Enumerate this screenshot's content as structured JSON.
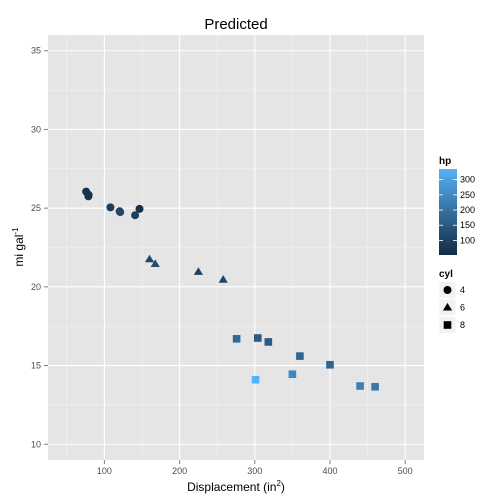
{
  "chart_data": {
    "type": "scatter",
    "title": "Predicted",
    "xlabel": "Displacement (in",
    "xlabel_sup": "2",
    "xlabel_suffix": ")",
    "ylabel": "mi gal",
    "ylabel_sup": "-1",
    "xlim": [
      25,
      525
    ],
    "ylim": [
      9,
      36
    ],
    "xticks": [
      100,
      200,
      300,
      400,
      500
    ],
    "yticks": [
      10,
      15,
      20,
      25,
      30,
      35
    ],
    "grid": true,
    "panel_bg": "#E5E5E5",
    "grid_color": "#FFFFFF",
    "hp_color_low": "#132B43",
    "hp_color_high": "#56B1F7",
    "hp_range": [
      52,
      335
    ],
    "legend_placement": "right",
    "legend_hp": {
      "title": "hp",
      "ticks": [
        100,
        150,
        200,
        250,
        300
      ]
    },
    "legend_cyl": {
      "title": "cyl",
      "items": [
        {
          "label": "4",
          "shape": "circle"
        },
        {
          "label": "6",
          "shape": "triangle"
        },
        {
          "label": "8",
          "shape": "square"
        }
      ]
    },
    "points": [
      {
        "x": 75.7,
        "y": 26.05,
        "hp": 66,
        "cyl": "4"
      },
      {
        "x": 78.7,
        "y": 25.75,
        "hp": 65,
        "cyl": "4"
      },
      {
        "x": 79.0,
        "y": 25.85,
        "hp": 66,
        "cyl": "4"
      },
      {
        "x": 108.0,
        "y": 25.05,
        "hp": 93,
        "cyl": "4"
      },
      {
        "x": 120.3,
        "y": 24.8,
        "hp": 91,
        "cyl": "4"
      },
      {
        "x": 121.0,
        "y": 24.75,
        "hp": 109,
        "cyl": "4"
      },
      {
        "x": 140.8,
        "y": 24.55,
        "hp": 95,
        "cyl": "4"
      },
      {
        "x": 146.7,
        "y": 24.95,
        "hp": 62,
        "cyl": "4"
      },
      {
        "x": 160.0,
        "y": 21.75,
        "hp": 110,
        "cyl": "6"
      },
      {
        "x": 167.6,
        "y": 21.45,
        "hp": 123,
        "cyl": "6"
      },
      {
        "x": 225.0,
        "y": 20.95,
        "hp": 105,
        "cyl": "6"
      },
      {
        "x": 258.0,
        "y": 20.45,
        "hp": 110,
        "cyl": "6"
      },
      {
        "x": 275.8,
        "y": 16.7,
        "hp": 180,
        "cyl": "8"
      },
      {
        "x": 301.0,
        "y": 14.1,
        "hp": 335,
        "cyl": "8"
      },
      {
        "x": 304.0,
        "y": 16.75,
        "hp": 150,
        "cyl": "8"
      },
      {
        "x": 318.0,
        "y": 16.5,
        "hp": 150,
        "cyl": "8"
      },
      {
        "x": 350.0,
        "y": 14.45,
        "hp": 245,
        "cyl": "8"
      },
      {
        "x": 360.0,
        "y": 15.6,
        "hp": 175,
        "cyl": "8"
      },
      {
        "x": 400.0,
        "y": 15.05,
        "hp": 175,
        "cyl": "8"
      },
      {
        "x": 440.0,
        "y": 13.7,
        "hp": 230,
        "cyl": "8"
      },
      {
        "x": 460.0,
        "y": 13.65,
        "hp": 215,
        "cyl": "8"
      }
    ]
  }
}
